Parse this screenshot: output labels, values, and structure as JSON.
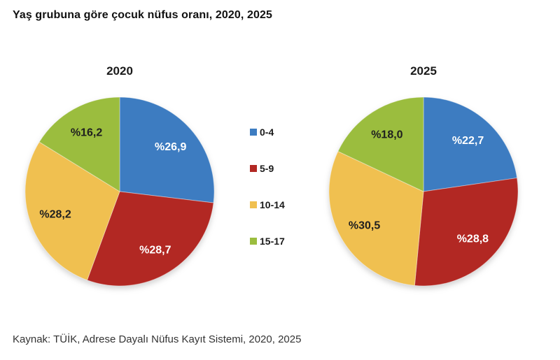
{
  "page": {
    "title": "Yaş grubuna göre çocuk nüfus oranı, 2020, 2025",
    "source": "Kaynak: TÜİK, Adrese Dayalı Nüfus Kayıt Sistemi, 2020, 2025"
  },
  "colors": {
    "age_0_4": "#3d7cc1",
    "age_5_9": "#b22823",
    "age_10_14": "#f0c050",
    "age_15_17": "#9bbd3e",
    "label_light": "#ffffff",
    "label_dark": "#1f1f1f"
  },
  "legend": {
    "position": "center-between-charts",
    "items": [
      {
        "label": "0-4",
        "color": "#3d7cc1"
      },
      {
        "label": "5-9",
        "color": "#b22823"
      },
      {
        "label": "10-14",
        "color": "#f0c050"
      },
      {
        "label": "15-17",
        "color": "#9bbd3e"
      }
    ]
  },
  "chart_data": [
    {
      "type": "pie",
      "title": "2020",
      "categories": [
        "0-4",
        "5-9",
        "10-14",
        "15-17"
      ],
      "values": [
        26.9,
        28.7,
        28.2,
        16.2
      ],
      "labels": [
        "%26,9",
        "%28,7",
        "%28,2",
        "%16,2"
      ],
      "colors": [
        "#3d7cc1",
        "#b22823",
        "#f0c050",
        "#9bbd3e"
      ],
      "label_colors": [
        "#ffffff",
        "#ffffff",
        "#1f1f1f",
        "#1f1f1f"
      ],
      "start_angle_deg": 0,
      "direction": "clockwise",
      "label_radius_ratio": 0.72
    },
    {
      "type": "pie",
      "title": "2025",
      "categories": [
        "0-4",
        "5-9",
        "10-14",
        "15-17"
      ],
      "values": [
        22.7,
        28.8,
        30.5,
        18.0
      ],
      "labels": [
        "%22,7",
        "%28,8",
        "%30,5",
        "%18,0"
      ],
      "colors": [
        "#3d7cc1",
        "#b22823",
        "#f0c050",
        "#9bbd3e"
      ],
      "label_colors": [
        "#ffffff",
        "#ffffff",
        "#1f1f1f",
        "#1f1f1f"
      ],
      "start_angle_deg": 0,
      "direction": "clockwise",
      "label_radius_ratio": 0.72
    }
  ]
}
